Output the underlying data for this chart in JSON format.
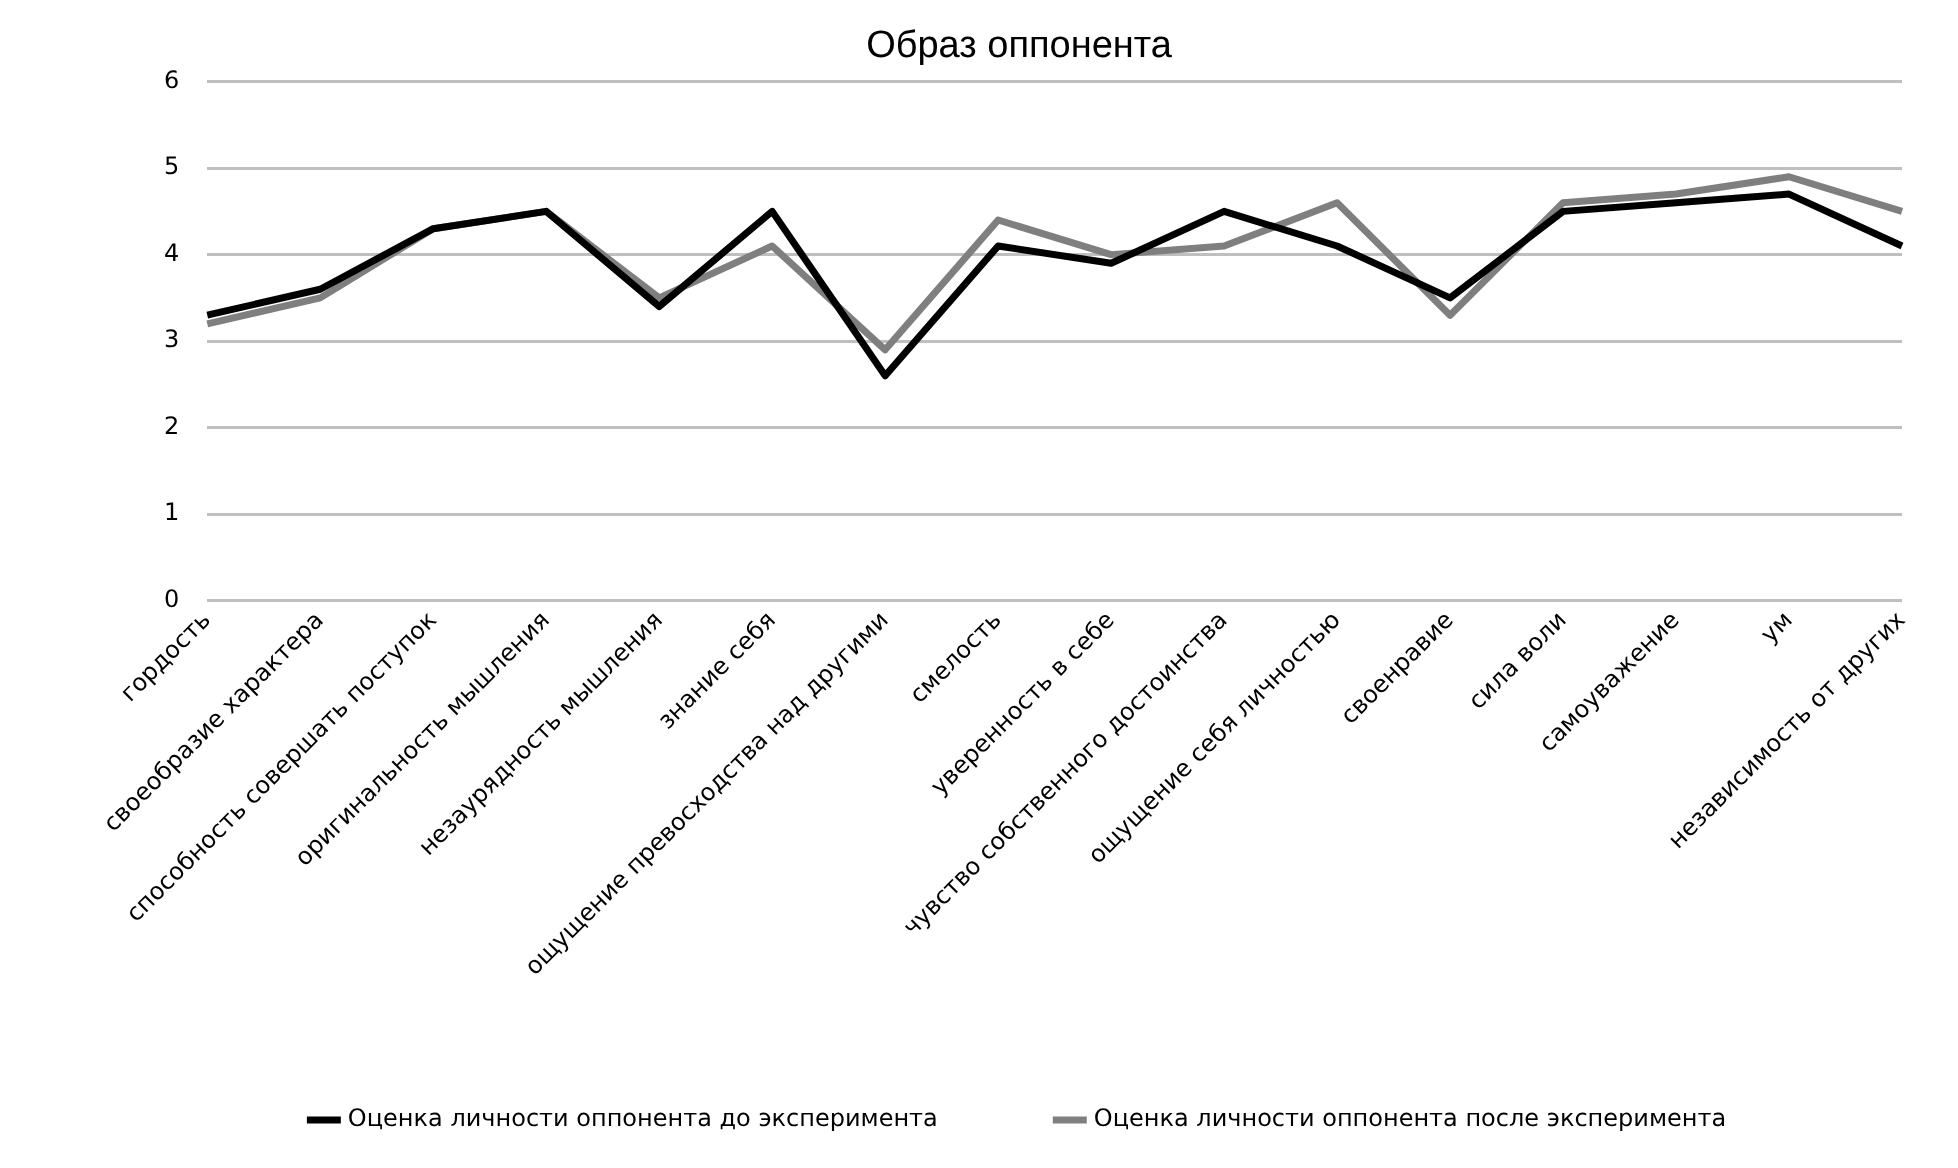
{
  "chart_data": {
    "type": "line",
    "title": "Образ оппонента",
    "categories": [
      "гордость",
      "своеобразие характера",
      "способность совершать поступок",
      "оригинальность мышления",
      "незаурядность мышления",
      "знание себя",
      "ощущение превосходства над другими",
      "смелость",
      "уверенность в себе",
      "чувство собственного достоинства",
      "ощущение себя личностью",
      "своенравие",
      "сила воли",
      "самоуважение",
      "ум",
      "независимость от других"
    ],
    "series": [
      {
        "name": "Оценка личности оппонента до эксперимента",
        "color": "#000000",
        "values": [
          3.3,
          3.6,
          4.3,
          4.5,
          3.4,
          4.5,
          2.6,
          4.1,
          3.9,
          4.5,
          4.1,
          3.5,
          4.5,
          4.6,
          4.7,
          4.1
        ]
      },
      {
        "name": "Оценка личности оппонента после эксперимента",
        "color": "#7f7f7f",
        "values": [
          3.2,
          3.5,
          4.3,
          4.5,
          3.5,
          4.1,
          2.9,
          4.4,
          4.0,
          4.1,
          4.6,
          3.3,
          4.6,
          4.7,
          4.9,
          4.5
        ]
      }
    ],
    "ylim": [
      0,
      6
    ],
    "yticks": [
      0,
      1,
      2,
      3,
      4,
      5,
      6
    ],
    "grid": "y",
    "legend": "bottom",
    "marker": "none",
    "line_style": "solid"
  }
}
